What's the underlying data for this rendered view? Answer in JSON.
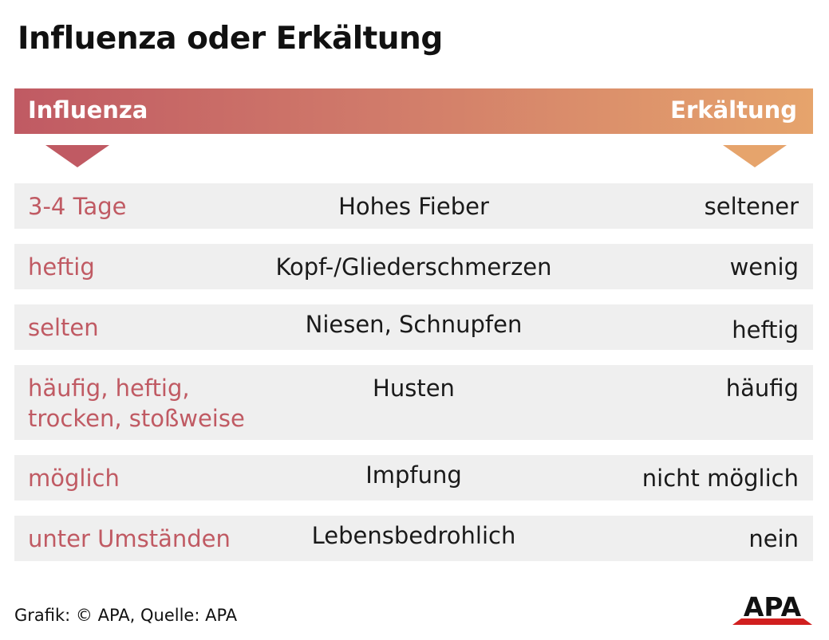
{
  "title": "Influenza oder Erkältung",
  "header": {
    "left": "Influenza",
    "right": "Erkältung"
  },
  "colors": {
    "influenza": "#c05a63",
    "erkaeltung": "#e6a46c",
    "row_bg": "#efefef",
    "logo": "#d11f1f"
  },
  "rows": [
    {
      "influenza": [
        "3-4 Tage"
      ],
      "symptom": "Hohes Fieber",
      "erkaeltung": "seltener"
    },
    {
      "influenza": [
        "heftig"
      ],
      "symptom": "Kopf-/Gliederschmerzen",
      "erkaeltung": "wenig"
    },
    {
      "influenza": [
        "selten"
      ],
      "symptom": "Niesen, Schnupfen",
      "erkaeltung": "heftig"
    },
    {
      "influenza": [
        "häufig, heftig,",
        "trocken, stoßweise"
      ],
      "symptom": "Husten",
      "erkaeltung": "häufig"
    },
    {
      "influenza": [
        "möglich"
      ],
      "symptom": "Impfung",
      "erkaeltung": "nicht möglich"
    },
    {
      "influenza": [
        "unter Umständen"
      ],
      "symptom": "Lebensbedrohlich",
      "erkaeltung": "nein"
    }
  ],
  "footer": "Grafik: © APA, Quelle: APA",
  "logo": {
    "text": "APA",
    "icon": "apa-logo-icon"
  }
}
